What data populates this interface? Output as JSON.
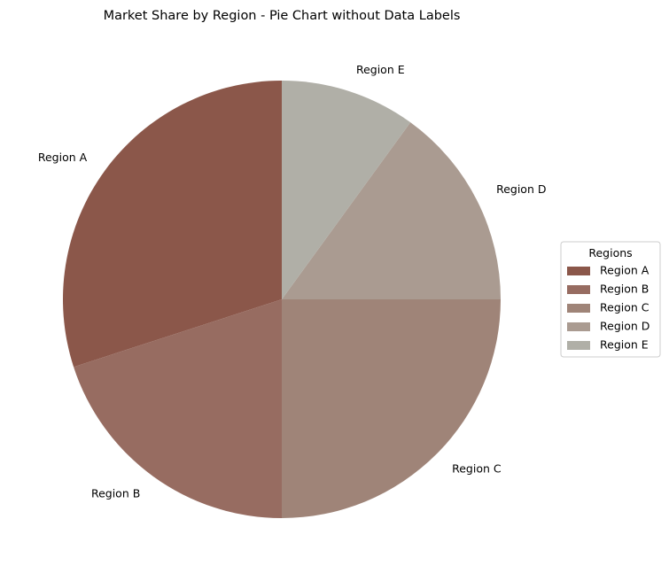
{
  "chart_data": {
    "type": "pie",
    "title": "Market Share by Region - Pie Chart without Data Labels",
    "categories": [
      "Region A",
      "Region B",
      "Region C",
      "Region D",
      "Region E"
    ],
    "values": [
      30,
      20,
      25,
      15,
      10
    ],
    "colors": [
      "#8b574a",
      "#976c61",
      "#9f8478",
      "#aa9b91",
      "#b0afa7"
    ],
    "start_angle_deg": 90,
    "direction": "counterclockwise",
    "legend": {
      "title": "Regions",
      "placement": "right"
    }
  }
}
